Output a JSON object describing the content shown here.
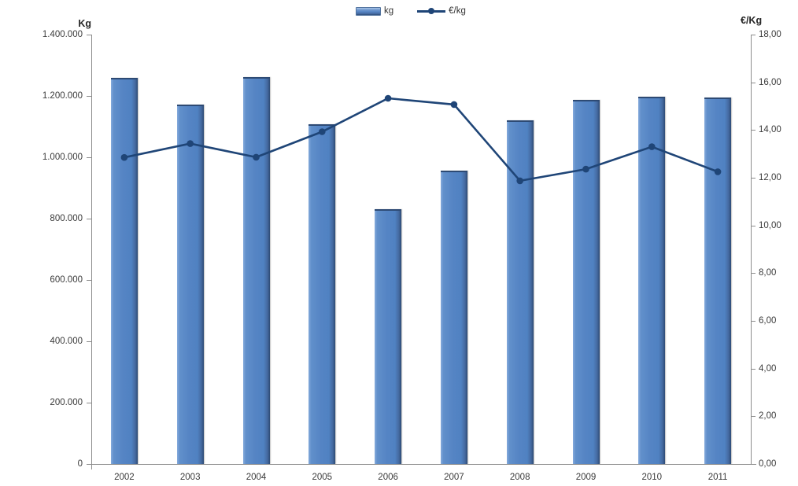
{
  "legend": {
    "items": [
      {
        "label": "kg",
        "type": "bar"
      },
      {
        "label": "€/kg",
        "type": "line"
      }
    ]
  },
  "axes": {
    "left": {
      "title": "Kg",
      "ticks": [
        "1.400.000",
        "1.200.000",
        "1.000.000",
        "800.000",
        "600.000",
        "400.000",
        "200.000",
        "0"
      ]
    },
    "right": {
      "title": "€/Kg",
      "ticks": [
        "18,00",
        "16,00",
        "14,00",
        "12,00",
        "10,00",
        "8,00",
        "6,00",
        "4,00",
        "2,00",
        "0,00"
      ]
    },
    "x": {
      "categories": [
        "2002",
        "2003",
        "2004",
        "2005",
        "2006",
        "2007",
        "2008",
        "2009",
        "2010",
        "2011"
      ]
    }
  },
  "chart_data": {
    "type": "bar+line",
    "title": "",
    "categories": [
      "2002",
      "2003",
      "2004",
      "2005",
      "2006",
      "2007",
      "2008",
      "2009",
      "2010",
      "2011"
    ],
    "series": [
      {
        "name": "kg",
        "type": "bar",
        "axis": "left",
        "values": [
          1253000,
          1167000,
          1256000,
          1102000,
          825000,
          951000,
          1115000,
          1182000,
          1192000,
          1190000
        ]
      },
      {
        "name": "€/kg",
        "type": "line",
        "axis": "right",
        "values": [
          12.85,
          13.43,
          12.86,
          13.93,
          15.33,
          15.07,
          11.87,
          12.36,
          13.3,
          12.25
        ]
      }
    ],
    "ylabel_left": "Kg",
    "ylabel_right": "€/Kg",
    "ylim_left": [
      0,
      1400000
    ],
    "ylim_right": [
      0,
      18
    ],
    "grid": false,
    "legend_position": "top-center"
  },
  "colors": {
    "bar": "#5584C4",
    "bar_highlight": "#86ABDC",
    "bar_shadow": "#2D4A74",
    "line": "#1F4577",
    "axis": "#8C8C8C",
    "text": "#3A3A3A"
  }
}
